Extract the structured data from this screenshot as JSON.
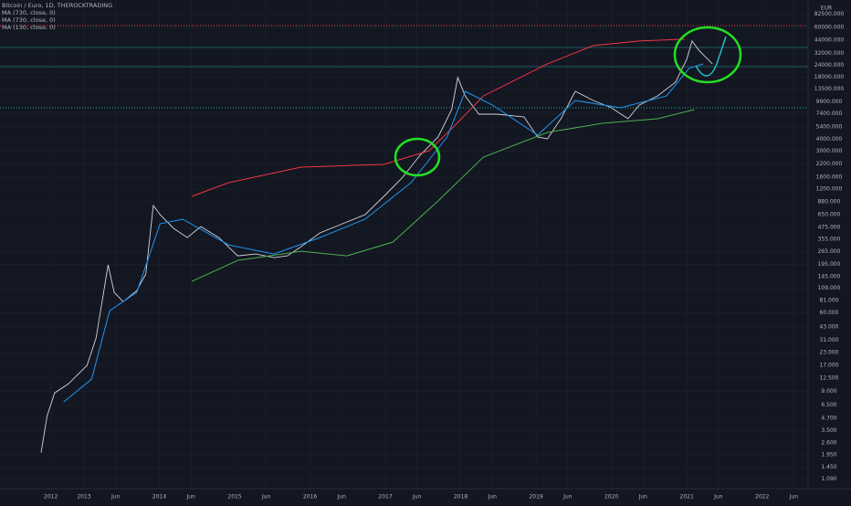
{
  "chart_data": {
    "type": "line",
    "title": "Bitcoin / Euro, 1D, THEROCKTRADING",
    "currency": "EUR",
    "log_scale": true,
    "grid": true,
    "xlim": [
      2011.885,
      2022.61
    ],
    "ylim": [
      0.77,
      116000
    ],
    "xticks": [
      {
        "value": 2012.56,
        "label": "2012"
      },
      {
        "value": 2013.0,
        "label": "2013"
      },
      {
        "value": 2013.42,
        "label": "Jun"
      },
      {
        "value": 2014.0,
        "label": "2014"
      },
      {
        "value": 2014.42,
        "label": "Jun"
      },
      {
        "value": 2015.0,
        "label": "2015"
      },
      {
        "value": 2015.42,
        "label": "Jun"
      },
      {
        "value": 2016.0,
        "label": "2016"
      },
      {
        "value": 2016.42,
        "label": "Jun"
      },
      {
        "value": 2017.0,
        "label": "2017"
      },
      {
        "value": 2017.42,
        "label": "Jun"
      },
      {
        "value": 2018.0,
        "label": "2018"
      },
      {
        "value": 2018.42,
        "label": "Jun"
      },
      {
        "value": 2019.0,
        "label": "2019"
      },
      {
        "value": 2019.42,
        "label": "Jun"
      },
      {
        "value": 2020.0,
        "label": "2020"
      },
      {
        "value": 2020.42,
        "label": "Jun"
      },
      {
        "value": 2021.0,
        "label": "2021"
      },
      {
        "value": 2021.42,
        "label": "Jun"
      },
      {
        "value": 2022.0,
        "label": "2022"
      },
      {
        "value": 2022.42,
        "label": "Jun"
      }
    ],
    "yticks": [
      {
        "value": 82500,
        "label": "82500.000"
      },
      {
        "value": 60000,
        "label": "60000.000"
      },
      {
        "value": 44000,
        "label": "44000.000"
      },
      {
        "value": 32000,
        "label": "32000.000"
      },
      {
        "value": 24000,
        "label": "24000.000"
      },
      {
        "value": 18000,
        "label": "18000.000"
      },
      {
        "value": 13500,
        "label": "13500.000"
      },
      {
        "value": 9900,
        "label": "9900.000"
      },
      {
        "value": 7400,
        "label": "7400.000"
      },
      {
        "value": 5400,
        "label": "5400.000"
      },
      {
        "value": 4000,
        "label": "4000.000"
      },
      {
        "value": 3000,
        "label": "3000.000"
      },
      {
        "value": 2200,
        "label": "2200.000"
      },
      {
        "value": 1600,
        "label": "1600.000"
      },
      {
        "value": 1200,
        "label": "1200.000"
      },
      {
        "value": 880,
        "label": "880.000"
      },
      {
        "value": 650,
        "label": "650.000"
      },
      {
        "value": 475,
        "label": "475.000"
      },
      {
        "value": 355,
        "label": "355.000"
      },
      {
        "value": 265,
        "label": "265.000"
      },
      {
        "value": 195,
        "label": "195.000"
      },
      {
        "value": 145,
        "label": "145.000"
      },
      {
        "value": 109,
        "label": "109.000"
      },
      {
        "value": 81,
        "label": "81.000"
      },
      {
        "value": 60,
        "label": "60.000"
      },
      {
        "value": 43,
        "label": "43.000"
      },
      {
        "value": 31,
        "label": "31.000"
      },
      {
        "value": 23,
        "label": "23.000"
      },
      {
        "value": 17,
        "label": "17.000"
      },
      {
        "value": 12.5,
        "label": "12.500"
      },
      {
        "value": 9,
        "label": "9.000"
      },
      {
        "value": 6.5,
        "label": "6.500"
      },
      {
        "value": 4.7,
        "label": "4.700"
      },
      {
        "value": 3.5,
        "label": "3.500"
      },
      {
        "value": 2.6,
        "label": "2.600"
      },
      {
        "value": 1.95,
        "label": "1.950"
      },
      {
        "value": 1.45,
        "label": "1.450"
      },
      {
        "value": 1.09,
        "label": "1.090"
      }
    ],
    "series": [
      {
        "color": "#d1d4dc",
        "legend": false,
        "x": [
          2012.43,
          2012.51,
          2012.61,
          2012.79,
          2013.04,
          2013.16,
          2013.24,
          2013.32,
          2013.4,
          2013.52,
          2013.7,
          2013.82,
          2013.92,
          2014.01,
          2014.19,
          2014.37,
          2014.55,
          2014.79,
          2015.04,
          2015.28,
          2015.52,
          2015.7,
          2015.88,
          2016.13,
          2016.43,
          2016.73,
          2016.98,
          2017.22,
          2017.46,
          2017.7,
          2017.88,
          2017.96,
          2018.06,
          2018.24,
          2018.48,
          2018.84,
          2019.02,
          2019.15,
          2019.33,
          2019.52,
          2019.76,
          2020.0,
          2020.22,
          2020.37,
          2020.61,
          2020.85,
          2021.0,
          2021.07,
          2021.16,
          2021.34
        ],
        "values": [
          2.06,
          5.0,
          8.7,
          10.8,
          16.9,
          32.7,
          79,
          192,
          99,
          79,
          103,
          154,
          807,
          647,
          464,
          372,
          485,
          372,
          239,
          250,
          229,
          239,
          298,
          416,
          519,
          647,
          1007,
          1564,
          2716,
          4227,
          8200,
          17800,
          11400,
          7350,
          7350,
          6870,
          4227,
          4045,
          6577,
          12760,
          10230,
          8570,
          6577,
          9160,
          11400,
          15900,
          27700,
          43000,
          34500,
          24800
        ]
      },
      {
        "name": "MA (730, close, 0)",
        "color": "#f23645",
        "x": [
          2014.43,
          2014.92,
          2015.88,
          2016.98,
          2017.58,
          2017.95,
          2018.3,
          2019.15,
          2019.76,
          2020.37,
          2020.97
        ],
        "values": [
          1007,
          1403,
          2042,
          2179,
          3034,
          5890,
          11400,
          24800,
          38550,
          43000,
          45000
        ]
      },
      {
        "name": "MA (730, close, 0)",
        "color": "#4caf50",
        "x": [
          2014.43,
          2015.04,
          2015.88,
          2016.49,
          2017.1,
          2017.7,
          2018.3,
          2019.15,
          2019.88,
          2020.61,
          2021.1
        ],
        "values": [
          129,
          214,
          267,
          239,
          334,
          901,
          2600,
          4720,
          5890,
          6577,
          8200
        ]
      },
      {
        "name": "MA (130, close, 0)",
        "color": "#2196f3",
        "x": [
          2012.73,
          2013.1,
          2013.34,
          2013.7,
          2014.01,
          2014.31,
          2014.92,
          2015.52,
          2016.13,
          2016.73,
          2017.34,
          2017.82,
          2018.06,
          2018.42,
          2019.02,
          2019.52,
          2020.12,
          2020.73,
          2021.03,
          2021.22
        ],
        "values": [
          7.0,
          12.1,
          63.5,
          99,
          519,
          580,
          312,
          250,
          372,
          580,
          1403,
          4227,
          12760,
          9160,
          4430,
          10230,
          8570,
          11400,
          22200,
          24800
        ]
      }
    ]
  }
}
